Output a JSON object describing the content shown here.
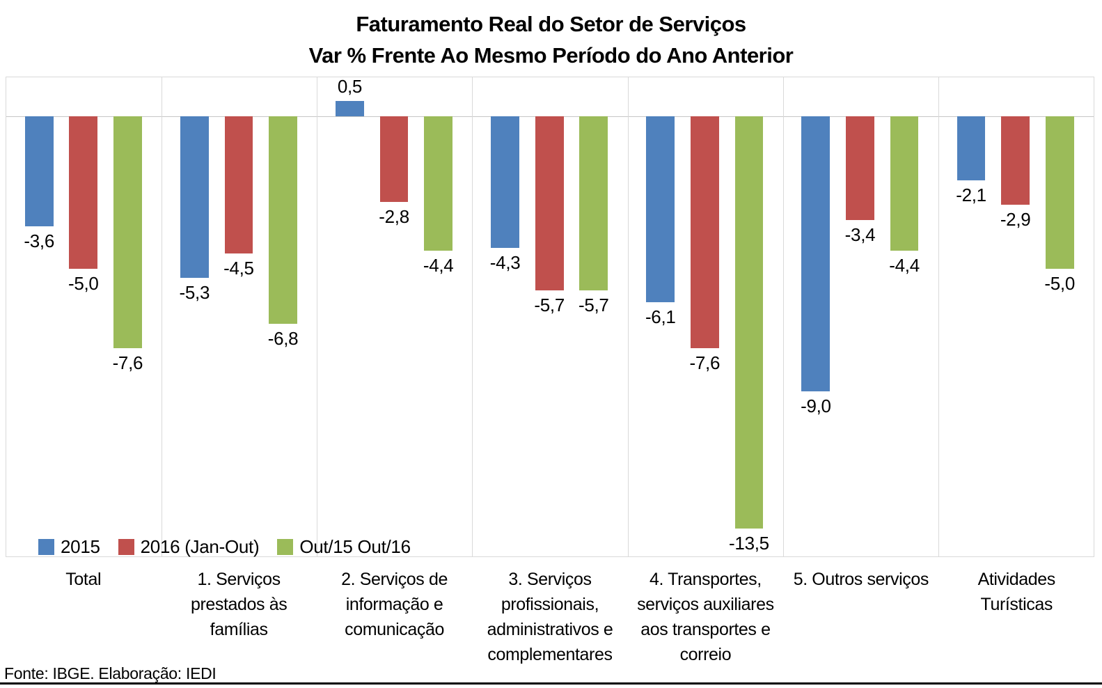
{
  "title": {
    "line1": "Faturamento Real do Setor de Serviços",
    "line2": "Var % Frente Ao Mesmo Período do Ano Anterior"
  },
  "footer": {
    "source": "Fonte: IBGE. Elaboração: IEDI"
  },
  "chart_data": {
    "type": "bar",
    "title": "Faturamento Real do Setor de Serviços — Var % Frente Ao Mesmo Período do Ano Anterior",
    "categories": [
      "Total",
      "1. Serviços\nprestados às\nfamílias",
      "2. Serviços de\ninformação e\ncomunicação",
      "3. Serviços\nprofissionais,\nadministrativos e\ncomplementares",
      "4. Transportes,\nserviços auxiliares\naos transportes e\ncorreio",
      "5. Outros serviços",
      "Atividades\nTurísticas"
    ],
    "series": [
      {
        "name": "2015",
        "color": "#4F81BD",
        "values": [
          -3.6,
          -5.3,
          0.5,
          -4.3,
          -6.1,
          -9.0,
          -2.1
        ],
        "labels": [
          "-3,6",
          "-5,3",
          "0,5",
          "-4,3",
          "-6,1",
          "-9,0",
          "-2,1"
        ]
      },
      {
        "name": "2016 (Jan-Out)",
        "color": "#C0504D",
        "values": [
          -5.0,
          -4.5,
          -2.8,
          -5.7,
          -7.6,
          -3.4,
          -2.9
        ],
        "labels": [
          "-5,0",
          "-4,5",
          "-2,8",
          "-5,7",
          "-7,6",
          "-3,4",
          "-2,9"
        ]
      },
      {
        "name": "Out/15 Out/16",
        "color": "#9BBB59",
        "values": [
          -7.6,
          -6.8,
          -4.4,
          -5.7,
          -13.5,
          -4.4,
          -5.0
        ],
        "labels": [
          "-7,6",
          "-6,8",
          "-4,4",
          "-5,7",
          "-13,5",
          "-4,4",
          "-5,0"
        ]
      }
    ],
    "ylabel": "Var %",
    "xlabel": "",
    "ylim": [
      -14.5,
      1.3
    ],
    "grid": "vertical category separators, light gray",
    "gridline_color": "#D9D9D9",
    "legend_position": "bottom-left inside plot area",
    "value_label_decimal_separator": ","
  }
}
